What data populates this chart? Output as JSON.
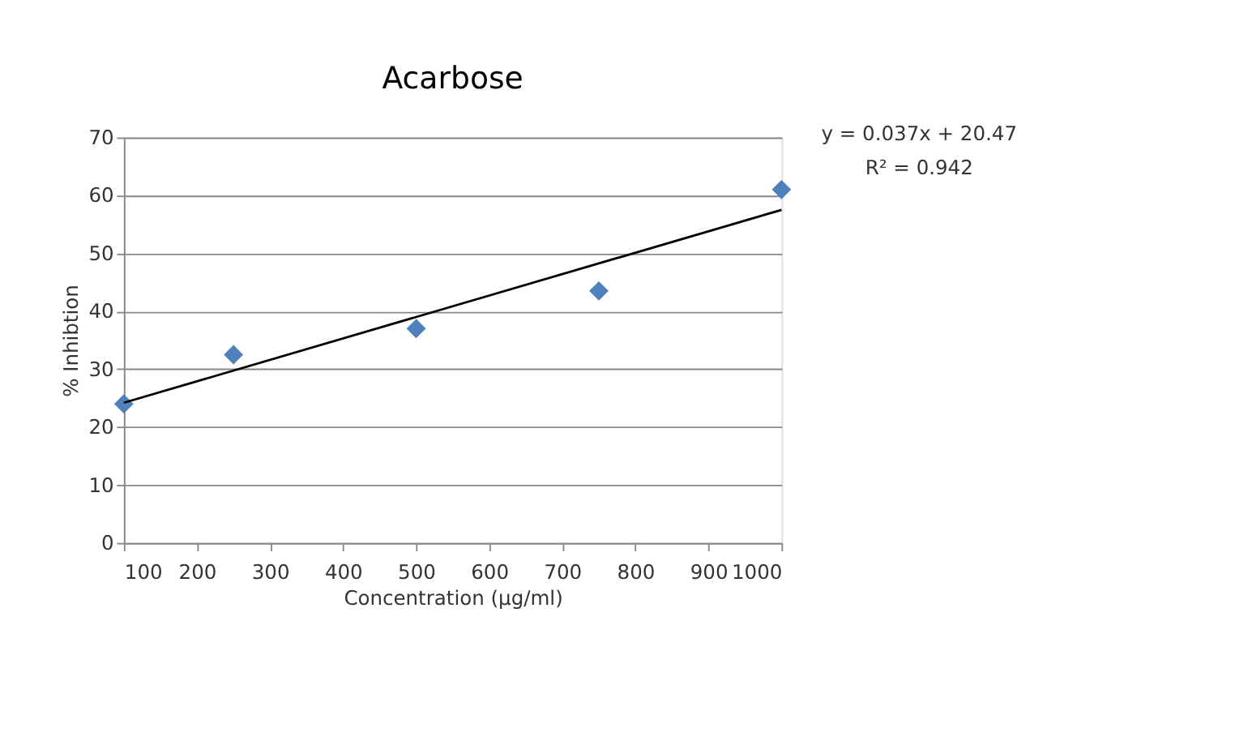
{
  "chart_data": {
    "type": "scatter",
    "title": "Acarbose",
    "xlabel": "Concentration  (µg/ml)",
    "ylabel": "% Inhibtion",
    "x": [
      100,
      250,
      500,
      750,
      1000
    ],
    "series": [
      {
        "color": "#4f81bd",
        "values": [
          24,
          32.5,
          37,
          43.5,
          61
        ],
        "marker": "diamond"
      },
      {
        "type": "line",
        "color": "#000000",
        "x": [
          100,
          1000
        ],
        "values": [
          24.2,
          57.5
        ],
        "marker": "none",
        "line_style": "solid"
      }
    ],
    "xlim": [
      100,
      1000
    ],
    "xticks": [
      100,
      200,
      300,
      400,
      500,
      600,
      700,
      800,
      900,
      1000
    ],
    "ylim": [
      0,
      70
    ],
    "yticks": [
      0,
      10,
      20,
      30,
      40,
      50,
      60,
      70
    ],
    "grid": "y",
    "annotations": [
      "y = 0.037x + 20.47",
      "R² = 0.942"
    ]
  }
}
